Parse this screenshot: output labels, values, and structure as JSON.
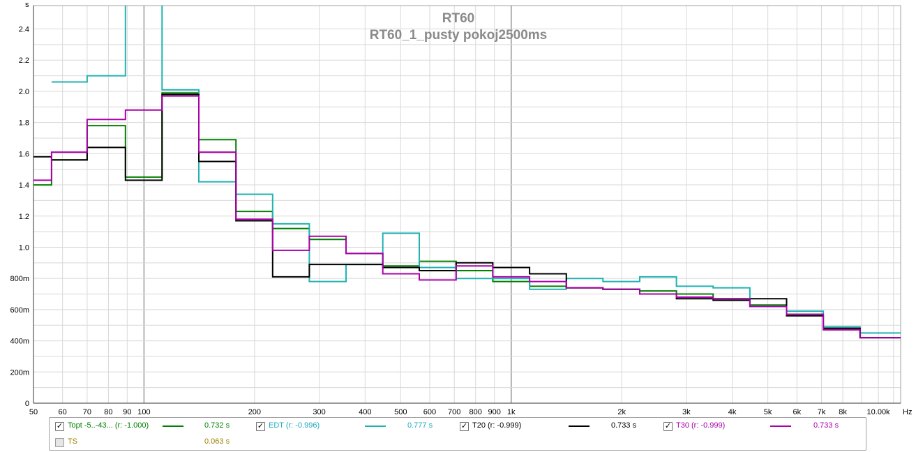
{
  "chart_data": {
    "type": "line",
    "title": "RT60",
    "subtitle": "RT60_1_pusty pokoj2500ms",
    "ylabel": "s",
    "xlabel": "Hz",
    "xscale": "log",
    "xlim": [
      50,
      11500
    ],
    "ylim": [
      0,
      2.55
    ],
    "grid": true,
    "x_ticks": [
      {
        "v": 50,
        "t": "50"
      },
      {
        "v": 60,
        "t": "60"
      },
      {
        "v": 70,
        "t": "70"
      },
      {
        "v": 80,
        "t": "80"
      },
      {
        "v": 90,
        "t": "90"
      },
      {
        "v": 100,
        "t": "100"
      },
      {
        "v": 200,
        "t": "200"
      },
      {
        "v": 300,
        "t": "300"
      },
      {
        "v": 400,
        "t": "400"
      },
      {
        "v": 500,
        "t": "500"
      },
      {
        "v": 600,
        "t": "600"
      },
      {
        "v": 700,
        "t": "700"
      },
      {
        "v": 800,
        "t": "800"
      },
      {
        "v": 900,
        "t": "900"
      },
      {
        "v": 1000,
        "t": "1k"
      },
      {
        "v": 2000,
        "t": "2k"
      },
      {
        "v": 3000,
        "t": "3k"
      },
      {
        "v": 4000,
        "t": "4k"
      },
      {
        "v": 5000,
        "t": "5k"
      },
      {
        "v": 6000,
        "t": "6k"
      },
      {
        "v": 7000,
        "t": "7k"
      },
      {
        "v": 8000,
        "t": "8k"
      },
      {
        "v": 10000,
        "t": "10.00k"
      }
    ],
    "y_ticks": [
      {
        "v": 0,
        "t": "0"
      },
      {
        "v": 0.2,
        "t": "200m"
      },
      {
        "v": 0.4,
        "t": "400m"
      },
      {
        "v": 0.6,
        "t": "600m"
      },
      {
        "v": 0.8,
        "t": "800m"
      },
      {
        "v": 1.0,
        "t": "1.0"
      },
      {
        "v": 1.2,
        "t": "1.2"
      },
      {
        "v": 1.4,
        "t": "1.4"
      },
      {
        "v": 1.6,
        "t": "1.6"
      },
      {
        "v": 1.8,
        "t": "1.8"
      },
      {
        "v": 2.0,
        "t": "2.0"
      },
      {
        "v": 2.2,
        "t": "2.2"
      },
      {
        "v": 2.4,
        "t": "2.4"
      }
    ],
    "band_edges": [
      56,
      70,
      89,
      112,
      141,
      178,
      224,
      282,
      355,
      447,
      562,
      708,
      891,
      1122,
      1413,
      1778,
      2239,
      2818,
      3548,
      4467,
      5623,
      7079,
      8913
    ],
    "series": [
      {
        "name": "Topt -5..-43... (r: -1.000)",
        "color": "#008000",
        "values": [
          1.4,
          1.56,
          1.78,
          1.45,
          1.99,
          1.69,
          1.23,
          1.12,
          1.05,
          0.96,
          0.88,
          0.91,
          0.85,
          0.78,
          0.75,
          0.74,
          0.73,
          0.72,
          0.7,
          0.67,
          0.63,
          0.57,
          0.48,
          0.42
        ]
      },
      {
        "name": "EDT (r: -0.996)",
        "color": "#20b2b2",
        "values": [
          null,
          2.06,
          2.1,
          3.5,
          2.01,
          1.42,
          1.34,
          1.15,
          0.78,
          0.89,
          1.09,
          0.87,
          0.8,
          0.8,
          0.73,
          0.8,
          0.78,
          0.81,
          0.75,
          0.74,
          0.62,
          0.59,
          0.49,
          0.45
        ]
      },
      {
        "name": "T20 (r: -0.999)",
        "color": "#000000",
        "values": [
          1.58,
          1.56,
          1.64,
          1.43,
          1.98,
          1.55,
          1.17,
          0.81,
          0.89,
          0.89,
          0.87,
          0.85,
          0.9,
          0.87,
          0.83,
          0.74,
          0.73,
          0.7,
          0.67,
          0.66,
          0.67,
          0.56,
          0.48,
          0.42
        ]
      },
      {
        "name": "T30 (r: -0.999)",
        "color": "#aa00aa",
        "values": [
          1.43,
          1.61,
          1.82,
          1.88,
          1.97,
          1.61,
          1.18,
          0.98,
          1.07,
          0.96,
          0.83,
          0.79,
          0.88,
          0.81,
          0.78,
          0.74,
          0.73,
          0.7,
          0.68,
          0.67,
          0.62,
          0.57,
          0.47,
          0.42
        ]
      }
    ]
  },
  "legend": {
    "items": [
      {
        "label": "Topt -5..-43... (r: -1.000)",
        "value": "0.732 s",
        "color": "#008000",
        "text_color": "#008000",
        "checked": true
      },
      {
        "label": "EDT (r: -0.996)",
        "value": "0.777 s",
        "color": "#20b2b2",
        "text_color": "#20a8c0",
        "checked": true
      },
      {
        "label": "T20 (r: -0.999)",
        "value": "0.733 s",
        "color": "#000000",
        "text_color": "#000000",
        "checked": true
      },
      {
        "label": "T30 (r: -0.999)",
        "value": "0.733 s",
        "color": "#aa00aa",
        "text_color": "#aa00aa",
        "checked": true
      },
      {
        "label": "TS",
        "value": "0.063 s",
        "color": "#b8860b",
        "text_color": "#a08000",
        "checked": false
      }
    ],
    "check_mark": "✓"
  }
}
